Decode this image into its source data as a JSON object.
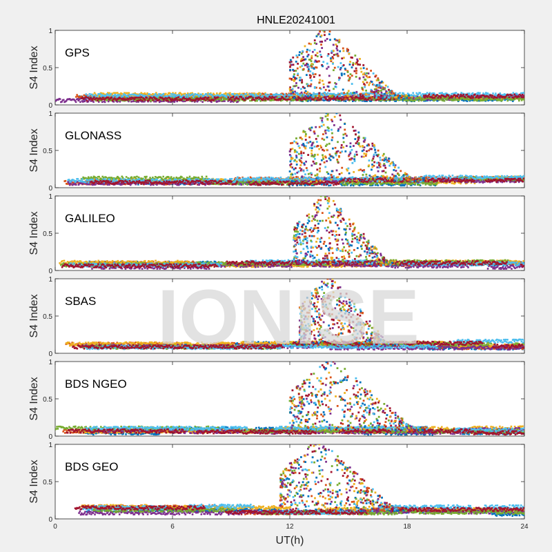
{
  "chart_data": {
    "type": "scatter",
    "title": "HNLE20241001",
    "xlabel": "UT(h)",
    "ylabel": "S4 Index",
    "xlim": [
      0,
      24
    ],
    "ylim": [
      0,
      1
    ],
    "xticks": [
      "0",
      "6",
      "12",
      "18",
      "24"
    ],
    "yticks": [
      "0",
      "0.5",
      "1"
    ],
    "watermark": "IONISE",
    "series_colors": [
      "#0072BD",
      "#D95319",
      "#EDB120",
      "#7E2F8E",
      "#77AC30",
      "#4DBEEE",
      "#A2142F"
    ],
    "panels": [
      {
        "label": "GPS",
        "activity": [
          {
            "start": 12.0,
            "end": 18.1,
            "peak": 1.0
          }
        ],
        "baseline": 0.08
      },
      {
        "label": "GLONASS",
        "activity": [
          {
            "start": 12.0,
            "end": 19.0,
            "peak": 1.0
          }
        ],
        "baseline": 0.08
      },
      {
        "label": "GALILEO",
        "activity": [
          {
            "start": 12.2,
            "end": 17.6,
            "peak": 1.0
          }
        ],
        "baseline": 0.07
      },
      {
        "label": "SBAS",
        "activity": [
          {
            "start": 12.5,
            "end": 17.5,
            "peak": 1.0
          }
        ],
        "baseline": 0.1
      },
      {
        "label": "BDS NGEO",
        "activity": [
          {
            "start": 12.0,
            "end": 19.0,
            "peak": 1.0
          }
        ],
        "baseline": 0.07
      },
      {
        "label": "BDS GEO",
        "activity": [
          {
            "start": 11.5,
            "end": 18.0,
            "peak": 1.0
          }
        ],
        "baseline": 0.1
      }
    ]
  }
}
